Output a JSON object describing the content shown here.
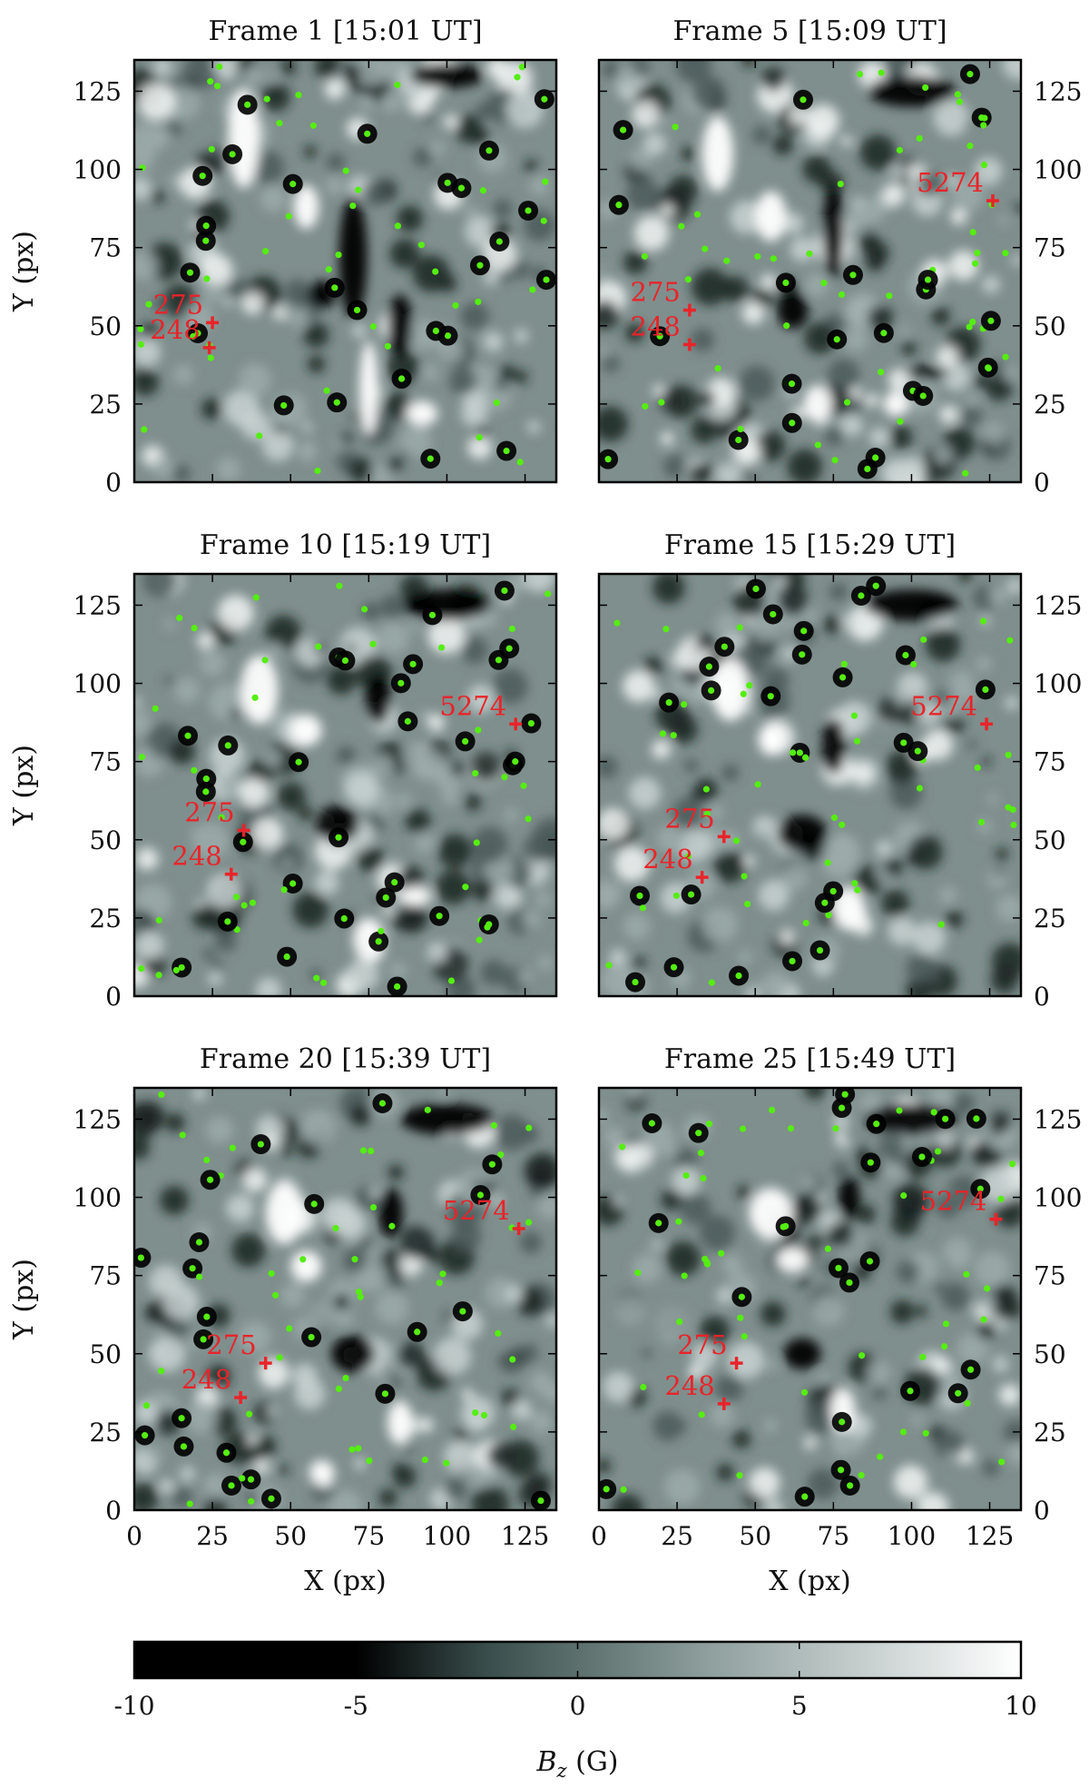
{
  "chart_data": [
    {
      "type": "heatmap",
      "title": "Frame 1 [15:01 UT]",
      "xlabel": "",
      "ylabel": "Y (px)",
      "xlim": [
        0,
        135
      ],
      "ylim": [
        0,
        135
      ],
      "yticks": [
        0,
        25,
        50,
        75,
        100,
        125
      ],
      "xticks": [],
      "labeled_points": [
        {
          "label": "275",
          "x": 25,
          "y": 51
        },
        {
          "label": "248",
          "x": 24,
          "y": 43
        }
      ],
      "strong_features": [
        {
          "x": 35,
          "y": 110,
          "w": 10,
          "h": 32,
          "sign": 1
        },
        {
          "x": 55,
          "y": 88,
          "w": 8,
          "h": 14,
          "sign": 1
        },
        {
          "x": 70,
          "y": 72,
          "w": 9,
          "h": 40,
          "sign": -1
        },
        {
          "x": 85,
          "y": 50,
          "w": 8,
          "h": 20,
          "sign": -1
        },
        {
          "x": 75,
          "y": 30,
          "w": 6,
          "h": 30,
          "sign": 1
        },
        {
          "x": 92,
          "y": 22,
          "w": 10,
          "h": 8,
          "sign": 1
        },
        {
          "x": 100,
          "y": 130,
          "w": 24,
          "h": 8,
          "sign": -1
        },
        {
          "x": 60,
          "y": 60,
          "w": 9,
          "h": 9,
          "sign": -1
        }
      ]
    },
    {
      "type": "heatmap",
      "title": "Frame 5 [15:09 UT]",
      "xlabel": "",
      "ylabel": "",
      "xlim": [
        0,
        135
      ],
      "ylim": [
        0,
        135
      ],
      "yticks": [
        0,
        25,
        50,
        75,
        100,
        125
      ],
      "xticks": [],
      "labeled_points": [
        {
          "label": "5274",
          "x": 126,
          "y": 90
        },
        {
          "label": "275",
          "x": 29,
          "y": 55
        },
        {
          "label": "248",
          "x": 29,
          "y": 44
        }
      ],
      "strong_features": [
        {
          "x": 38,
          "y": 105,
          "w": 10,
          "h": 24,
          "sign": 1
        },
        {
          "x": 55,
          "y": 85,
          "w": 10,
          "h": 16,
          "sign": 1
        },
        {
          "x": 75,
          "y": 80,
          "w": 7,
          "h": 30,
          "sign": -1
        },
        {
          "x": 62,
          "y": 55,
          "w": 10,
          "h": 12,
          "sign": -1
        },
        {
          "x": 70,
          "y": 25,
          "w": 9,
          "h": 12,
          "sign": 1
        },
        {
          "x": 95,
          "y": 25,
          "w": 8,
          "h": 8,
          "sign": 1
        },
        {
          "x": 100,
          "y": 125,
          "w": 28,
          "h": 10,
          "sign": -1
        },
        {
          "x": 105,
          "y": 35,
          "w": 14,
          "h": 4,
          "sign": -1
        }
      ]
    },
    {
      "type": "heatmap",
      "title": "Frame 10 [15:19 UT]",
      "xlabel": "",
      "ylabel": "Y (px)",
      "xlim": [
        0,
        135
      ],
      "ylim": [
        0,
        135
      ],
      "yticks": [
        0,
        25,
        50,
        75,
        100,
        125
      ],
      "xticks": [],
      "labeled_points": [
        {
          "label": "5274",
          "x": 122,
          "y": 87
        },
        {
          "label": "275",
          "x": 35,
          "y": 53
        },
        {
          "label": "248",
          "x": 31,
          "y": 39
        }
      ],
      "strong_features": [
        {
          "x": 40,
          "y": 98,
          "w": 12,
          "h": 22,
          "sign": 1
        },
        {
          "x": 55,
          "y": 85,
          "w": 10,
          "h": 10,
          "sign": 1
        },
        {
          "x": 78,
          "y": 95,
          "w": 8,
          "h": 16,
          "sign": -1
        },
        {
          "x": 65,
          "y": 55,
          "w": 14,
          "h": 12,
          "sign": -1
        },
        {
          "x": 75,
          "y": 18,
          "w": 10,
          "h": 14,
          "sign": 1
        },
        {
          "x": 90,
          "y": 32,
          "w": 10,
          "h": 6,
          "sign": 1
        },
        {
          "x": 100,
          "y": 125,
          "w": 28,
          "h": 10,
          "sign": -1
        }
      ]
    },
    {
      "type": "heatmap",
      "title": "Frame 15 [15:29 UT]",
      "xlabel": "",
      "ylabel": "",
      "xlim": [
        0,
        135
      ],
      "ylim": [
        0,
        135
      ],
      "yticks": [
        0,
        25,
        50,
        75,
        100,
        125
      ],
      "xticks": [],
      "labeled_points": [
        {
          "label": "5274",
          "x": 124,
          "y": 87
        },
        {
          "label": "275",
          "x": 40,
          "y": 51
        },
        {
          "label": "248",
          "x": 33,
          "y": 38
        }
      ],
      "strong_features": [
        {
          "x": 42,
          "y": 98,
          "w": 12,
          "h": 20,
          "sign": 1
        },
        {
          "x": 55,
          "y": 82,
          "w": 8,
          "h": 10,
          "sign": 1
        },
        {
          "x": 75,
          "y": 80,
          "w": 8,
          "h": 18,
          "sign": -1
        },
        {
          "x": 65,
          "y": 52,
          "w": 16,
          "h": 12,
          "sign": -1
        },
        {
          "x": 80,
          "y": 28,
          "w": 10,
          "h": 14,
          "sign": 1
        },
        {
          "x": 100,
          "y": 125,
          "w": 30,
          "h": 10,
          "sign": -1
        }
      ]
    },
    {
      "type": "heatmap",
      "title": "Frame 20 [15:39 UT]",
      "xlabel": "X (px)",
      "ylabel": "Y (px)",
      "xlim": [
        0,
        135
      ],
      "ylim": [
        0,
        135
      ],
      "yticks": [
        0,
        25,
        50,
        75,
        100,
        125
      ],
      "xticks": [
        0,
        25,
        50,
        75,
        100,
        125
      ],
      "labeled_points": [
        {
          "label": "5274",
          "x": 123,
          "y": 90
        },
        {
          "label": "275",
          "x": 42,
          "y": 47
        },
        {
          "label": "248",
          "x": 34,
          "y": 36
        }
      ],
      "strong_features": [
        {
          "x": 48,
          "y": 95,
          "w": 12,
          "h": 20,
          "sign": 1
        },
        {
          "x": 55,
          "y": 78,
          "w": 10,
          "h": 10,
          "sign": 1
        },
        {
          "x": 82,
          "y": 95,
          "w": 8,
          "h": 16,
          "sign": -1
        },
        {
          "x": 70,
          "y": 50,
          "w": 14,
          "h": 12,
          "sign": -1
        },
        {
          "x": 85,
          "y": 28,
          "w": 8,
          "h": 14,
          "sign": 1
        },
        {
          "x": 100,
          "y": 125,
          "w": 30,
          "h": 10,
          "sign": -1
        },
        {
          "x": 60,
          "y": 12,
          "w": 8,
          "h": 8,
          "sign": 1
        }
      ]
    },
    {
      "type": "heatmap",
      "title": "Frame 25 [15:49 UT]",
      "xlabel": "X (px)",
      "ylabel": "",
      "xlim": [
        0,
        135
      ],
      "ylim": [
        0,
        135
      ],
      "yticks": [
        0,
        25,
        50,
        75,
        100,
        125
      ],
      "xticks": [
        0,
        25,
        50,
        75,
        100,
        125
      ],
      "labeled_points": [
        {
          "label": "5274",
          "x": 127,
          "y": 93
        },
        {
          "label": "275",
          "x": 44,
          "y": 47
        },
        {
          "label": "248",
          "x": 40,
          "y": 34
        }
      ],
      "strong_features": [
        {
          "x": 55,
          "y": 95,
          "w": 14,
          "h": 16,
          "sign": 1
        },
        {
          "x": 62,
          "y": 80,
          "w": 10,
          "h": 8,
          "sign": 1
        },
        {
          "x": 80,
          "y": 100,
          "w": 7,
          "h": 14,
          "sign": -1
        },
        {
          "x": 65,
          "y": 50,
          "w": 12,
          "h": 10,
          "sign": -1
        },
        {
          "x": 78,
          "y": 32,
          "w": 8,
          "h": 14,
          "sign": 1
        },
        {
          "x": 100,
          "y": 125,
          "w": 30,
          "h": 10,
          "sign": -1
        }
      ]
    }
  ],
  "colorbar": {
    "label_main": "B",
    "label_sub": "z",
    "label_unit": " (G)",
    "range": [
      -10,
      10
    ],
    "ticks": [
      -10,
      -5,
      0,
      5,
      10
    ],
    "stops": [
      {
        "value": -10,
        "color": "#000000"
      },
      {
        "value": -5,
        "color": "#000000"
      },
      {
        "value": -2,
        "color": "#3a4f4d"
      },
      {
        "value": 3,
        "color": "#8fa09e"
      },
      {
        "value": 10,
        "color": "#ffffff"
      }
    ]
  },
  "colors": {
    "marker": "#e8242a",
    "feature_point": "#55ee11",
    "background_field": "#7f8f8d"
  },
  "tick_labels": [
    "-10",
    "-5",
    "0",
    "5",
    "10"
  ],
  "axis_ticks": [
    "0",
    "25",
    "50",
    "75",
    "100",
    "125"
  ]
}
